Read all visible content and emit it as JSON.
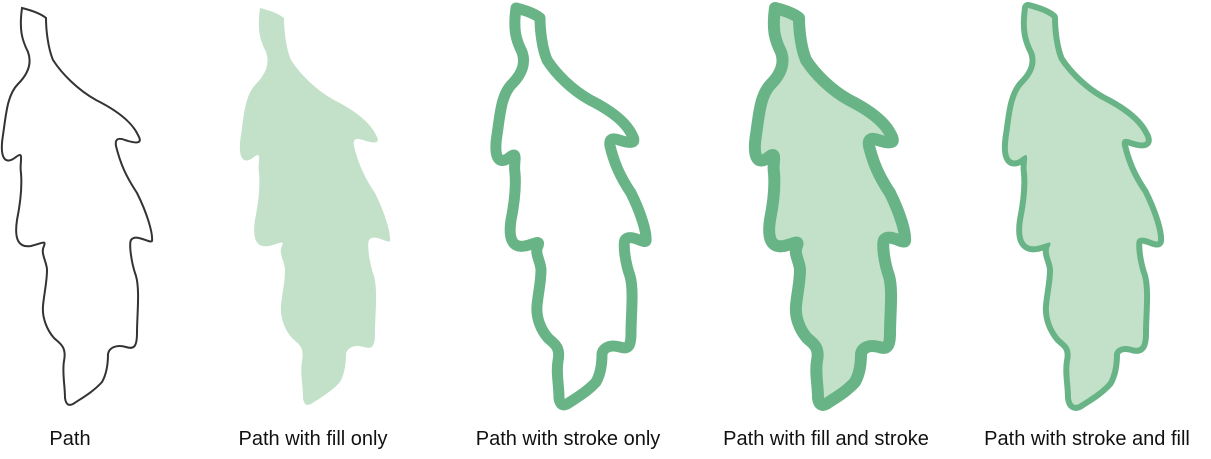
{
  "colors": {
    "outline": "#333333",
    "fill": "#c3e1c8",
    "stroke": "#69b487"
  },
  "panels": [
    {
      "label": "Path",
      "style": "outline"
    },
    {
      "label": "Path with fill only",
      "style": "fill"
    },
    {
      "label": "Path with stroke only",
      "style": "stroke"
    },
    {
      "label": "Path with fill and stroke",
      "style": "fill-stroke"
    },
    {
      "label": "Path with stroke and fill",
      "style": "stroke-fill"
    }
  ]
}
